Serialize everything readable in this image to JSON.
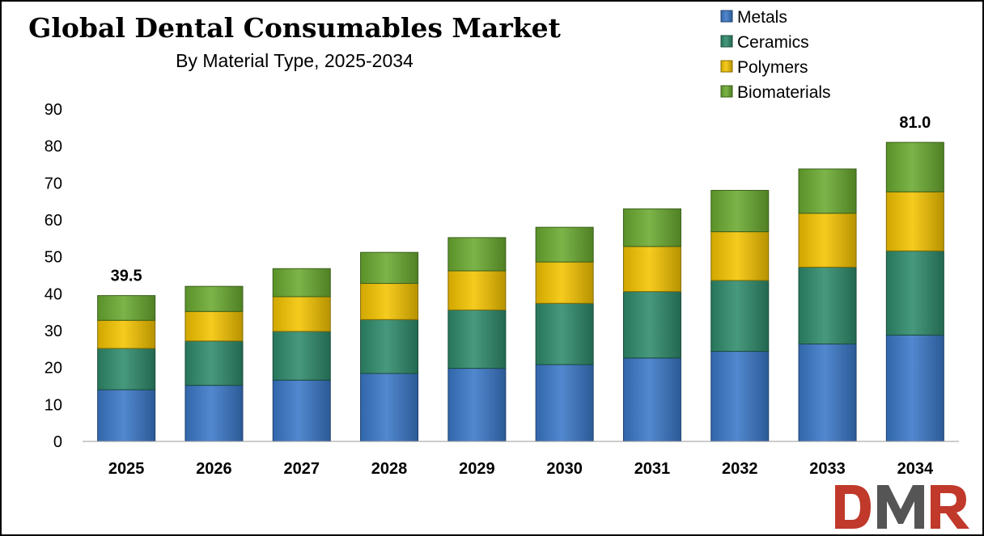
{
  "chart_data": {
    "type": "bar",
    "stacked": true,
    "title": "Global Dental Consumables Market",
    "subtitle": "By Material Type, 2025-2034",
    "xlabel": "",
    "ylabel": "",
    "ylim": [
      0,
      90
    ],
    "yticks": [
      "0",
      "10",
      "20",
      "30",
      "40",
      "50",
      "60",
      "70",
      "80",
      "90"
    ],
    "grid": false,
    "legend_position": "top-right",
    "categories": [
      "2025",
      "2026",
      "2027",
      "2028",
      "2029",
      "2030",
      "2031",
      "2032",
      "2033",
      "2034"
    ],
    "series": [
      {
        "name": "Metals",
        "color": "#3a78c8",
        "values": [
          14.0,
          15.2,
          16.6,
          18.4,
          19.8,
          20.8,
          22.6,
          24.4,
          26.4,
          28.8
        ]
      },
      {
        "name": "Ceramics",
        "color": "#2e8b6b",
        "values": [
          11.2,
          12.0,
          13.2,
          14.6,
          15.8,
          16.6,
          18.0,
          19.2,
          20.8,
          22.8
        ]
      },
      {
        "name": "Polymers",
        "color": "#f5c400",
        "values": [
          7.6,
          8.0,
          9.4,
          9.8,
          10.6,
          11.2,
          12.2,
          13.2,
          14.6,
          16.0
        ]
      },
      {
        "name": "Biomaterials",
        "color": "#6aaa30",
        "values": [
          6.7,
          6.8,
          7.6,
          8.4,
          9.0,
          9.4,
          10.2,
          11.2,
          12.0,
          13.4
        ]
      }
    ],
    "data_labels": [
      {
        "category": "2025",
        "text": "39.5"
      },
      {
        "category": "2034",
        "text": "81.0"
      }
    ]
  },
  "logo": {
    "text": "DMR",
    "colors": [
      "#c0392b",
      "#555555",
      "#c0392b"
    ]
  }
}
